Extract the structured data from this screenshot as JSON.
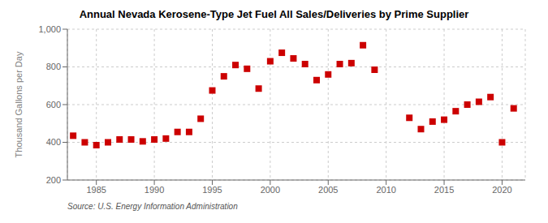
{
  "chart_data": {
    "type": "scatter",
    "title": "Annual Nevada Kerosene-Type Jet Fuel All Sales/Deliveries by Prime Supplier",
    "ylabel": "Thousand Gallons per Day",
    "annotations": [
      "Source: U.S. Energy Information Administration"
    ],
    "x": [
      1983,
      1984,
      1985,
      1986,
      1987,
      1988,
      1989,
      1990,
      1991,
      1992,
      1993,
      1994,
      1995,
      1996,
      1997,
      1998,
      1999,
      2000,
      2001,
      2002,
      2003,
      2004,
      2005,
      2006,
      2007,
      2008,
      2009,
      2012,
      2013,
      2014,
      2015,
      2016,
      2017,
      2018,
      2019,
      2020,
      2021
    ],
    "values": [
      435,
      400,
      385,
      400,
      415,
      415,
      405,
      415,
      420,
      455,
      455,
      525,
      675,
      750,
      810,
      790,
      685,
      830,
      875,
      845,
      815,
      730,
      760,
      815,
      820,
      915,
      785,
      530,
      470,
      510,
      520,
      565,
      600,
      615,
      640,
      400,
      580
    ],
    "color": "#cc0000",
    "marker": "square",
    "xlim": [
      1982.5,
      2022
    ],
    "xticks": [
      1985,
      1990,
      1995,
      2000,
      2005,
      2010,
      2015,
      2020
    ],
    "ylim": [
      200,
      1000
    ],
    "yticks": [
      200,
      400,
      600,
      800,
      {
        "value": 1000,
        "label": "1,000"
      }
    ],
    "grid": true
  }
}
